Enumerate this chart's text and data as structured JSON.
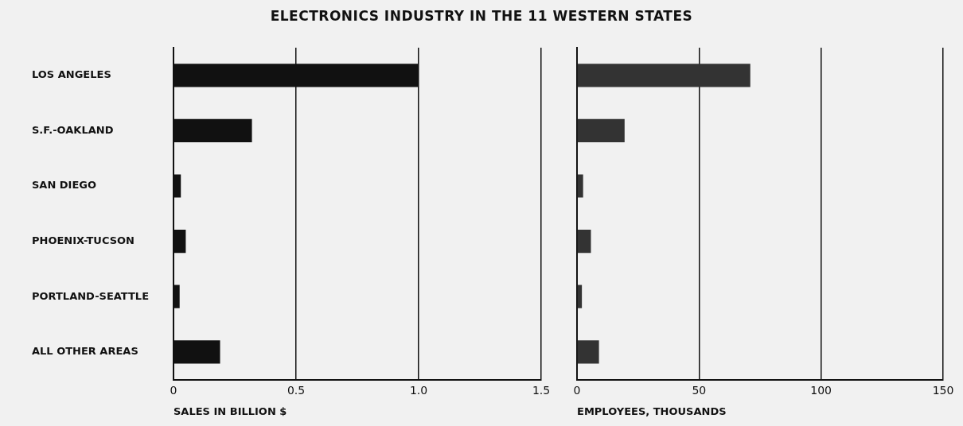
{
  "chart_data": [
    {
      "type": "bar",
      "orientation": "horizontal",
      "title": "ELECTRONICS INDUSTRY IN THE 11 WESTERN STATES",
      "xlabel": "SALES IN BILLION $",
      "categories": [
        "LOS ANGELES",
        "S.F.-OAKLAND",
        "SAN DIEGO",
        "PHOENIX-TUCSON",
        "PORTLAND-SEATTLE",
        "ALL OTHER AREAS"
      ],
      "values": [
        1.0,
        0.32,
        0.03,
        0.05,
        0.025,
        0.19
      ],
      "color": "#111111",
      "xlim": [
        0,
        1.5
      ],
      "xticks": [
        {
          "value": 0,
          "label": "0"
        },
        {
          "value": 0.5,
          "label": "0.5"
        },
        {
          "value": 1.0,
          "label": "1.0"
        },
        {
          "value": 1.5,
          "label": "1.5"
        }
      ],
      "grid": "x",
      "legend": false
    },
    {
      "type": "bar",
      "orientation": "horizontal",
      "xlabel": "EMPLOYEES, THOUSANDS",
      "categories": [
        null,
        null,
        null,
        null,
        null,
        null
      ],
      "values": [
        71,
        19.5,
        2.5,
        5.7,
        2,
        9
      ],
      "color": "#333333",
      "xlim": [
        0,
        150
      ],
      "xticks": [
        0,
        50,
        100,
        150
      ],
      "grid": "x",
      "legend": false,
      "tick_labels": "x"
    }
  ]
}
